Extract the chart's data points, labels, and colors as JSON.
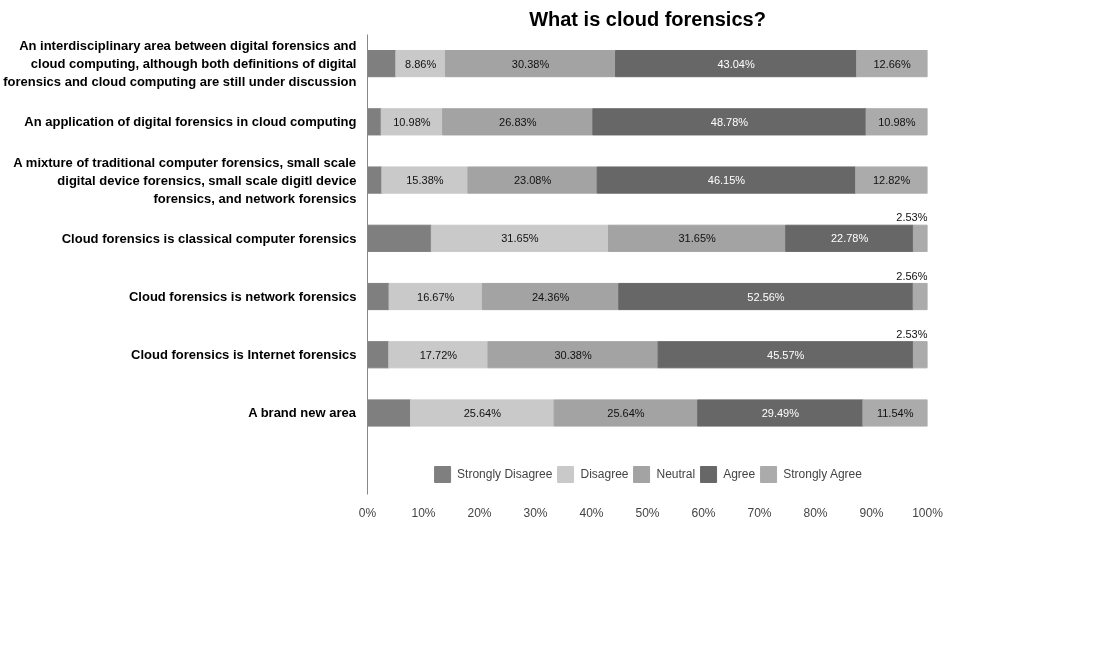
{
  "chart_data": {
    "type": "bar",
    "orientation": "horizontal",
    "stacked": true,
    "title": "What is cloud forensics?",
    "categories": [
      "An interdisciplinary area between digital forensics and cloud computing, although both definitions of digital forensics and cloud computing are still under discussion",
      "An application of digital forensics in cloud computing",
      "A mixture of traditional computer forensics, small scale digital device forensics, small scale digitl device forensics, and network forensics",
      "Cloud forensics is classical computer forensics",
      "Cloud forensics is network forensics",
      "Cloud forensics is Internet forensics",
      "A brand new area"
    ],
    "series": [
      {
        "name": "Strongly Disagree",
        "color": "#7f7f7f",
        "values": [
          5.06,
          2.44,
          2.56,
          11.39,
          3.85,
          3.8,
          7.69
        ],
        "value_labels": [
          null,
          null,
          null,
          null,
          null,
          null,
          null
        ]
      },
      {
        "name": "Disagree",
        "color": "#c9c9c9",
        "values": [
          8.86,
          10.98,
          15.38,
          31.65,
          16.67,
          17.72,
          25.64
        ],
        "value_labels": [
          "8.86%",
          "10.98%",
          "15.38%",
          "31.65%",
          "16.67%",
          "17.72%",
          "25.64%"
        ]
      },
      {
        "name": "Neutral",
        "color": "#a3a3a3",
        "values": [
          30.38,
          26.83,
          23.08,
          31.65,
          24.36,
          30.38,
          25.64
        ],
        "value_labels": [
          "30.38%",
          "26.83%",
          "23.08%",
          "31.65%",
          "24.36%",
          "30.38%",
          "25.64%"
        ]
      },
      {
        "name": "Agree",
        "color": "#676767",
        "values": [
          43.04,
          48.78,
          46.15,
          22.78,
          52.56,
          45.57,
          29.49
        ],
        "value_labels": [
          "43.04%",
          "48.78%",
          "46.15%",
          "22.78%",
          "52.56%",
          "45.57%",
          "29.49%"
        ]
      },
      {
        "name": "Strongly Agree",
        "color": "#ababab",
        "values": [
          12.66,
          10.98,
          12.82,
          2.53,
          2.56,
          2.53,
          11.54
        ],
        "value_labels": [
          "12.66%",
          "10.98%",
          "12.82%",
          "2.53%",
          "2.56%",
          "2.53%",
          "11.54%"
        ]
      }
    ],
    "xlim": [
      0,
      100
    ],
    "xticks": [
      {
        "value": 0,
        "label": "0%"
      },
      {
        "value": 10,
        "label": "10%"
      },
      {
        "value": 20,
        "label": "20%"
      },
      {
        "value": 30,
        "label": "30%"
      },
      {
        "value": 40,
        "label": "40%"
      },
      {
        "value": 50,
        "label": "50%"
      },
      {
        "value": 60,
        "label": "60%"
      },
      {
        "value": 70,
        "label": "70%"
      },
      {
        "value": 80,
        "label": "80%"
      },
      {
        "value": 90,
        "label": "90%"
      },
      {
        "value": 100,
        "label": "100%"
      }
    ],
    "legend": "bottom",
    "grid": false
  }
}
